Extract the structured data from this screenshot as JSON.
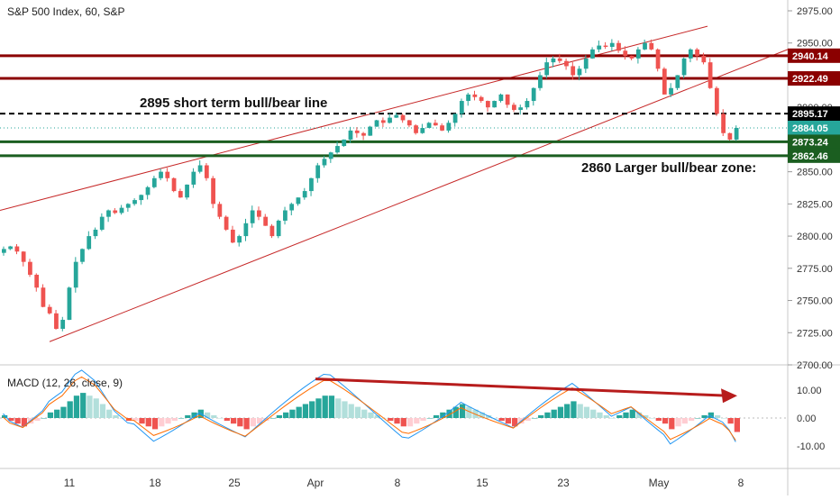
{
  "chart": {
    "title": "S&P 500 Index, 60, S&P",
    "annotations": {
      "short_line": "2895 short term bull/bear line",
      "larger_zone": "2860 Larger bull/bear zone:"
    }
  },
  "macd": {
    "title": "MACD (12, 26, close, 9)",
    "axis_labels": [
      "10.00",
      "0.00",
      "-10.00"
    ]
  },
  "price_axis": {
    "tick_labels": [
      "2975.00",
      "2950.00",
      "2925.00",
      "2900.00",
      "2875.00",
      "2850.00",
      "2825.00",
      "2800.00",
      "2775.00",
      "2750.00",
      "2725.00",
      "2700.00"
    ]
  },
  "price_tags": [
    {
      "label": "2940.14",
      "color": "#8b0000"
    },
    {
      "label": "2922.49",
      "color": "#8b0000"
    },
    {
      "label": "2895.17",
      "color": "#000000"
    },
    {
      "label": "2884.05",
      "color": "#26a69a"
    },
    {
      "label": "2873.24",
      "color": "#1b5e20"
    },
    {
      "label": "2862.46",
      "color": "#1b5e20"
    }
  ],
  "time_axis": {
    "labels": [
      "11",
      "18",
      "25",
      "Apr",
      "8",
      "15",
      "23",
      "May",
      "8"
    ]
  },
  "chart_data": {
    "type": "candlestick",
    "ylim": [
      2700,
      2980
    ],
    "horizontal_levels": [
      2940.14,
      2922.49,
      2895.17,
      2873.24,
      2862.46
    ],
    "last_price": 2884.05,
    "trend_channel": {
      "upper_start": 2820,
      "upper_end": 2963,
      "lower_start": 2718,
      "lower_end": 2945
    },
    "close_path": [
      2790,
      2792,
      2788,
      2780,
      2770,
      2760,
      2745,
      2740,
      2728,
      2735,
      2760,
      2780,
      2790,
      2800,
      2805,
      2815,
      2820,
      2818,
      2822,
      2825,
      2828,
      2832,
      2838,
      2845,
      2850,
      2845,
      2835,
      2830,
      2840,
      2850,
      2855,
      2845,
      2825,
      2815,
      2805,
      2795,
      2800,
      2810,
      2820,
      2815,
      2808,
      2800,
      2812,
      2820,
      2825,
      2830,
      2835,
      2845,
      2855,
      2860,
      2865,
      2870,
      2875,
      2882,
      2880,
      2878,
      2885,
      2890,
      2888,
      2892,
      2894,
      2890,
      2886,
      2880,
      2884,
      2888,
      2886,
      2882,
      2888,
      2895,
      2905,
      2910,
      2908,
      2905,
      2900,
      2905,
      2910,
      2902,
      2898,
      2900,
      2905,
      2915,
      2925,
      2935,
      2938,
      2936,
      2932,
      2925,
      2930,
      2938,
      2945,
      2948,
      2947,
      2950,
      2944,
      2940,
      2938,
      2945,
      2950,
      2945,
      2930,
      2910,
      2915,
      2925,
      2938,
      2945,
      2940,
      2935,
      2915,
      2895,
      2880,
      2875,
      2884.05
    ],
    "macd_hist_path": [
      1,
      -1,
      -2,
      -3,
      -2,
      -1,
      0,
      2,
      3,
      4,
      6,
      8,
      9,
      8,
      7,
      5,
      3,
      1,
      0,
      -1,
      -1,
      -2,
      -3,
      -4,
      -3,
      -2,
      -1,
      0,
      1,
      2,
      3,
      2,
      1,
      0,
      -1,
      -2,
      -3,
      -4,
      -3,
      -2,
      -1,
      0,
      1,
      2,
      3,
      4,
      5,
      6,
      7,
      8,
      8,
      7,
      6,
      5,
      4,
      3,
      2,
      1,
      0,
      -1,
      -2,
      -3,
      -3,
      -2,
      -1,
      0,
      1,
      2,
      3,
      4,
      5,
      4,
      3,
      2,
      1,
      0,
      -1,
      -2,
      -3,
      -2,
      -1,
      0,
      1,
      2,
      3,
      4,
      5,
      6,
      5,
      4,
      3,
      2,
      1,
      0,
      1,
      2,
      3,
      2,
      1,
      0,
      -1,
      -2,
      -4,
      -3,
      -2,
      -1,
      0,
      1,
      2,
      1,
      0,
      -2,
      -5
    ],
    "macd_trendline": {
      "start": 14,
      "end": 8
    }
  }
}
